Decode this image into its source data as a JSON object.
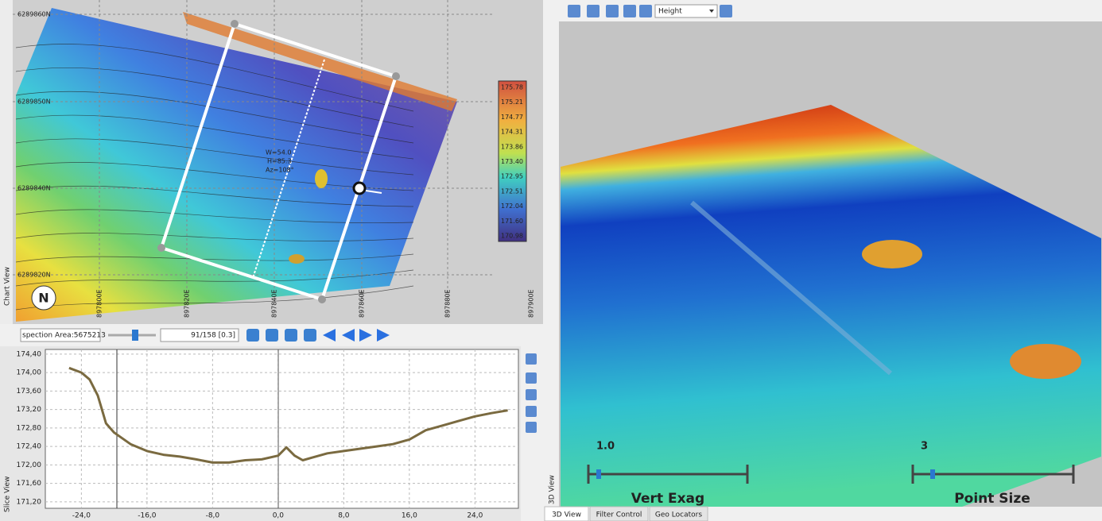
{
  "chart_view": {
    "side_label": "Chart View",
    "northings": [
      "6289860N",
      "6289850N",
      "6289840N",
      "6289820N"
    ],
    "eastings": [
      "897800E",
      "897820E",
      "897840E",
      "897860E",
      "897880E",
      "897900E"
    ],
    "legend": [
      "175.78",
      "175.21",
      "174.77",
      "174.31",
      "173.86",
      "173.40",
      "172.95",
      "172.51",
      "172.04",
      "171.60",
      "170.98"
    ],
    "annotation": [
      "W=54.0",
      "H=85.3",
      "Az=108°"
    ]
  },
  "toolbar": {
    "area": "spection Area:5675213",
    "frame": "91/158 [0.3]"
  },
  "slice_view": {
    "side_label": "Slice View"
  },
  "chart_data": {
    "type": "line",
    "x": [
      -25.5,
      -24,
      -23,
      -22,
      -21.5,
      -21,
      -20,
      -18,
      -16,
      -14,
      -12,
      -10,
      -8,
      -6,
      -4,
      -2,
      0,
      1,
      2,
      3,
      4,
      6,
      8,
      10,
      12,
      14,
      16,
      18,
      20,
      22,
      24,
      26,
      28
    ],
    "values": [
      174.1,
      174.0,
      173.85,
      173.5,
      173.2,
      172.9,
      172.7,
      172.45,
      172.3,
      172.22,
      172.18,
      172.12,
      172.05,
      172.05,
      172.1,
      172.12,
      172.2,
      172.38,
      172.2,
      172.1,
      172.15,
      172.25,
      172.3,
      172.35,
      172.4,
      172.45,
      172.55,
      172.75,
      172.85,
      172.95,
      173.05,
      173.12,
      173.18
    ],
    "color": "#7a6a40",
    "xlim": [
      -28.4,
      29.3
    ],
    "ylim": [
      171.06,
      174.5
    ],
    "xticks": [
      {
        "value": -24,
        "label": "-24,0"
      },
      {
        "value": -16,
        "label": "-16,0"
      },
      {
        "value": -8,
        "label": "-8,0"
      },
      {
        "value": 0,
        "label": "0,0"
      },
      {
        "value": 8,
        "label": "8,0"
      },
      {
        "value": 16,
        "label": "16,0"
      },
      {
        "value": 24,
        "label": "24,0"
      }
    ],
    "yticks": [
      {
        "value": 171.2,
        "label": "171,20"
      },
      {
        "value": 171.6,
        "label": "171,60"
      },
      {
        "value": 172,
        "label": "172,00"
      },
      {
        "value": 172.4,
        "label": "172,40"
      },
      {
        "value": 172.8,
        "label": "172,80"
      },
      {
        "value": 173.2,
        "label": "173,20"
      },
      {
        "value": 173.6,
        "label": "173,60"
      },
      {
        "value": 174,
        "label": "174,00"
      },
      {
        "value": 174.4,
        "label": "174,40"
      }
    ],
    "grid": true
  },
  "view3d": {
    "side_label": "3D View",
    "mode": "Height",
    "vert_exag_value": "1.0",
    "vert_exag_label": "Vert Exag",
    "point_size_value": "3",
    "point_size_label": "Point Size",
    "tabs": [
      "3D View",
      "Filter Control",
      "Geo Locators"
    ]
  }
}
